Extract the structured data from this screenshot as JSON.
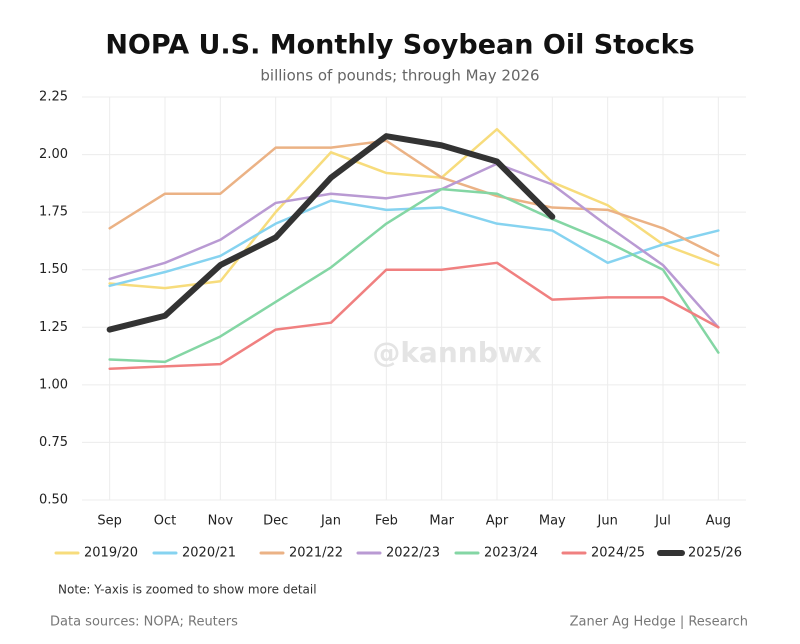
{
  "chart_data": {
    "type": "line",
    "title": "NOPA U.S. Monthly Soybean Oil Stocks",
    "subtitle": "billions of pounds; through May 2026",
    "note": "Note: Y-axis is zoomed to show more detail",
    "source": "Data sources: NOPA; Reuters",
    "credit": "Zaner Ag Hedge | Research",
    "watermark": "@kannbwx",
    "categories": [
      "Sep",
      "Oct",
      "Nov",
      "Dec",
      "Jan",
      "Feb",
      "Mar",
      "Apr",
      "May",
      "Jun",
      "Jul",
      "Aug"
    ],
    "series": [
      {
        "name": "2019/20",
        "color": "#f7dc7c",
        "values": [
          1.44,
          1.42,
          1.45,
          1.75,
          2.01,
          1.92,
          1.9,
          2.11,
          1.88,
          1.78,
          1.61,
          1.52
        ]
      },
      {
        "name": "2020/21",
        "color": "#86d3f0",
        "values": [
          1.43,
          1.49,
          1.56,
          1.7,
          1.8,
          1.76,
          1.77,
          1.7,
          1.67,
          1.53,
          1.61,
          1.67
        ]
      },
      {
        "name": "2021/22",
        "color": "#ebb285",
        "values": [
          1.68,
          1.83,
          1.83,
          2.03,
          2.03,
          2.06,
          1.9,
          1.82,
          1.77,
          1.76,
          1.68,
          1.56
        ]
      },
      {
        "name": "2022/23",
        "color": "#b99ad3",
        "values": [
          1.46,
          1.53,
          1.63,
          1.79,
          1.83,
          1.81,
          1.85,
          1.96,
          1.87,
          1.69,
          1.52,
          1.25
        ]
      },
      {
        "name": "2023/24",
        "color": "#84d6a4",
        "values": [
          1.11,
          1.1,
          1.21,
          1.36,
          1.51,
          1.7,
          1.85,
          1.83,
          1.72,
          1.62,
          1.5,
          1.14
        ]
      },
      {
        "name": "2024/25",
        "color": "#f08080",
        "values": [
          1.07,
          1.08,
          1.09,
          1.24,
          1.27,
          1.5,
          1.5,
          1.53,
          1.37,
          1.38,
          1.38,
          1.25
        ]
      },
      {
        "name": "2025/26",
        "color": "#333333",
        "values": [
          1.24,
          1.3,
          1.52,
          1.64,
          1.9,
          2.08,
          2.04,
          1.97,
          1.73,
          null,
          null,
          null
        ]
      }
    ],
    "ylim": [
      0.5,
      2.25
    ],
    "yticks": [
      {
        "value": 0.5,
        "label": "0.50"
      },
      {
        "value": 0.75,
        "label": "0.75"
      },
      {
        "value": 1,
        "label": "1.00"
      },
      {
        "value": 1.25,
        "label": "1.25"
      },
      {
        "value": 1.5,
        "label": "1.50"
      },
      {
        "value": 1.75,
        "label": "1.75"
      },
      {
        "value": 2,
        "label": "2.00"
      },
      {
        "value": 2.25,
        "label": "2.25"
      }
    ],
    "grid": true
  }
}
